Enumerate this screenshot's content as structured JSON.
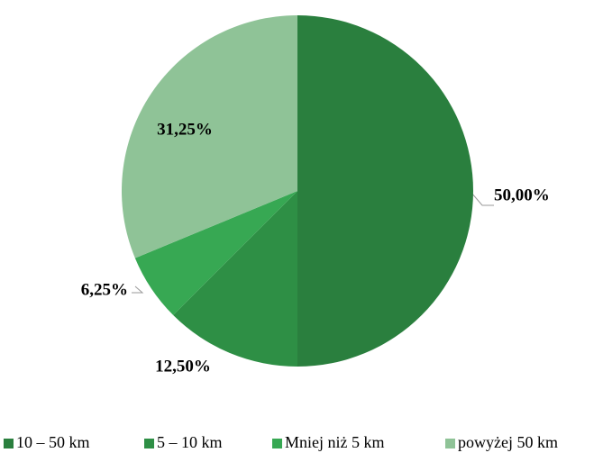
{
  "chart_data": {
    "type": "pie",
    "categories": [
      "10 – 50 km",
      "5 – 10 km",
      "Mniej niż 5 km",
      "powyżej 50 km"
    ],
    "values": [
      50,
      12.5,
      6.25,
      31.25
    ],
    "value_labels": [
      "50,00%",
      "12,50%",
      "6,25%",
      "31,25%"
    ],
    "colors": [
      "#2a7f3e",
      "#2e8f45",
      "#37a853",
      "#8fc397"
    ],
    "legend": "bottom"
  }
}
